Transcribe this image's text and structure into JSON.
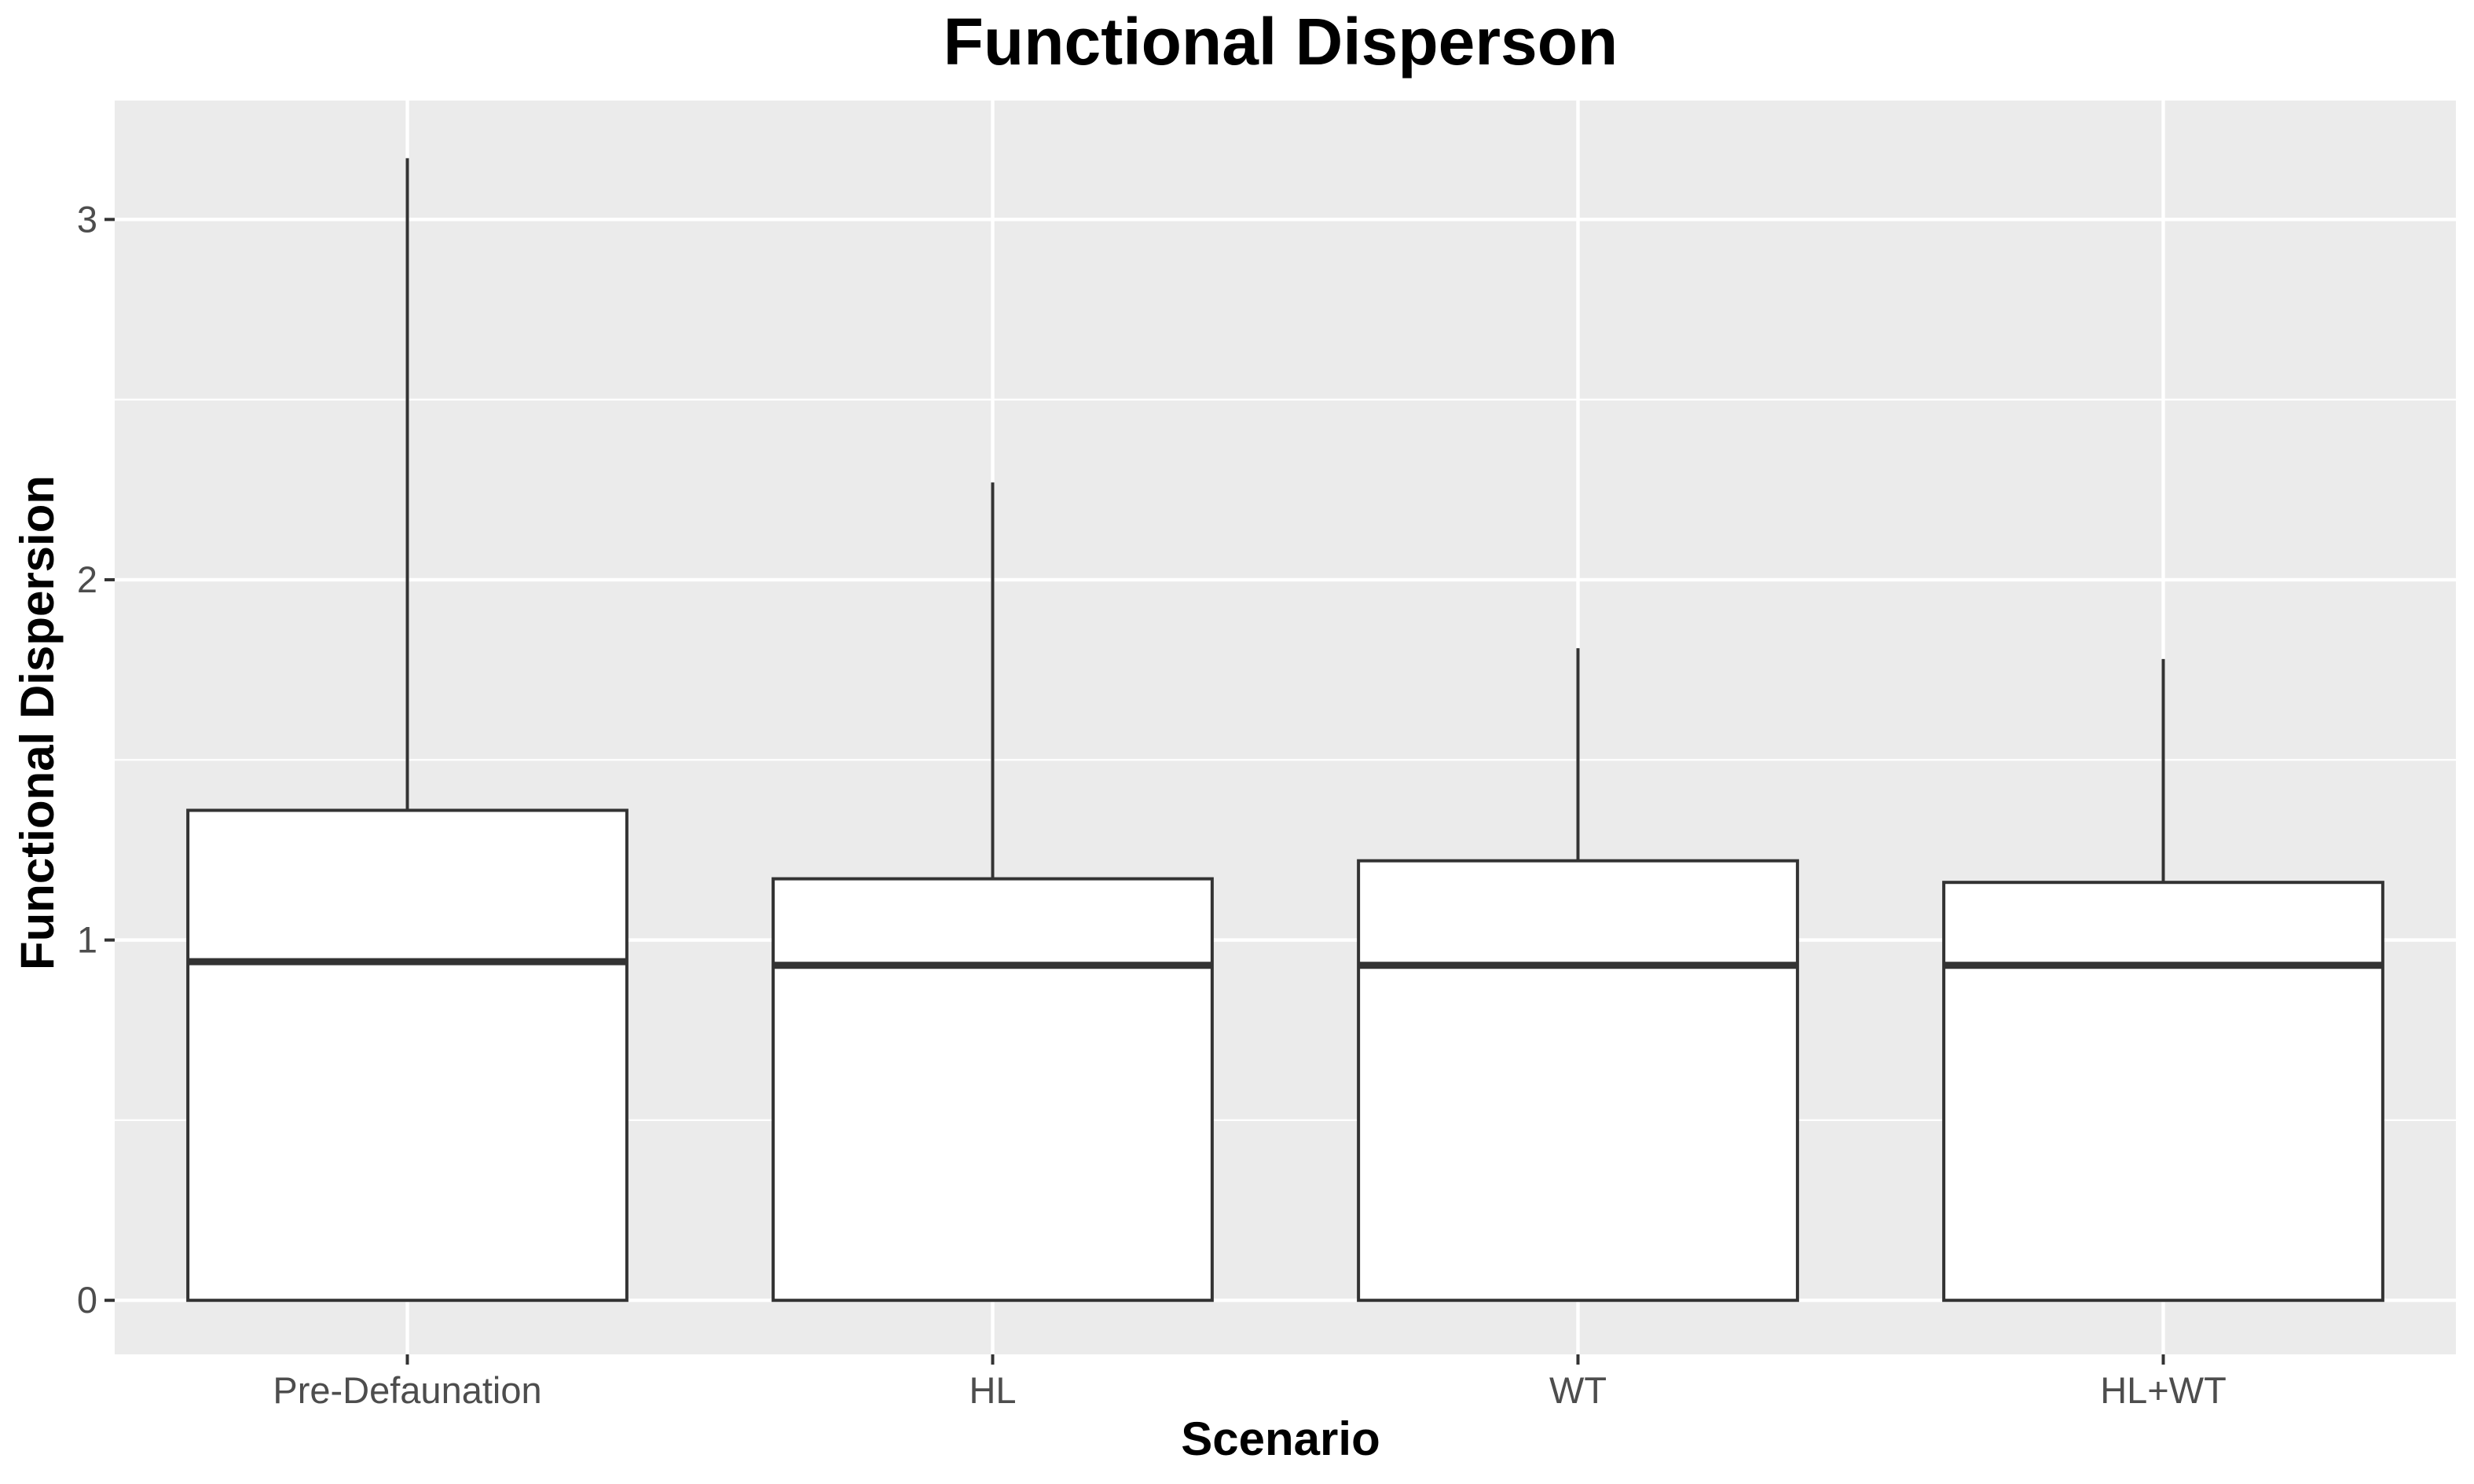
{
  "chart_data": {
    "type": "boxplot",
    "title": "Functional Disperson",
    "xlabel": "Scenario",
    "ylabel": "Functional Dispersion",
    "categories": [
      "Pre-Defaunation",
      "HL",
      "WT",
      "HL+WT"
    ],
    "boxes": [
      {
        "category": "Pre-Defaunation",
        "min": 0,
        "q1": 0,
        "median": 0.94,
        "q3": 1.36,
        "max": 3.17
      },
      {
        "category": "HL",
        "min": 0,
        "q1": 0,
        "median": 0.93,
        "q3": 1.17,
        "max": 2.27
      },
      {
        "category": "WT",
        "min": 0,
        "q1": 0,
        "median": 0.93,
        "q3": 1.22,
        "max": 1.81
      },
      {
        "category": "HL+WT",
        "min": 0,
        "q1": 0,
        "median": 0.93,
        "q3": 1.16,
        "max": 1.78
      }
    ],
    "yticks": [
      0,
      1,
      2,
      3
    ],
    "ylim": [
      -0.15,
      3.33
    ],
    "grid": true,
    "colors": {
      "panel_background": "#EBEBEB",
      "grid": "#FFFFFF",
      "box_fill": "#FFFFFF",
      "box_stroke": "#333333",
      "tick_text": "#4D4D4D"
    }
  }
}
